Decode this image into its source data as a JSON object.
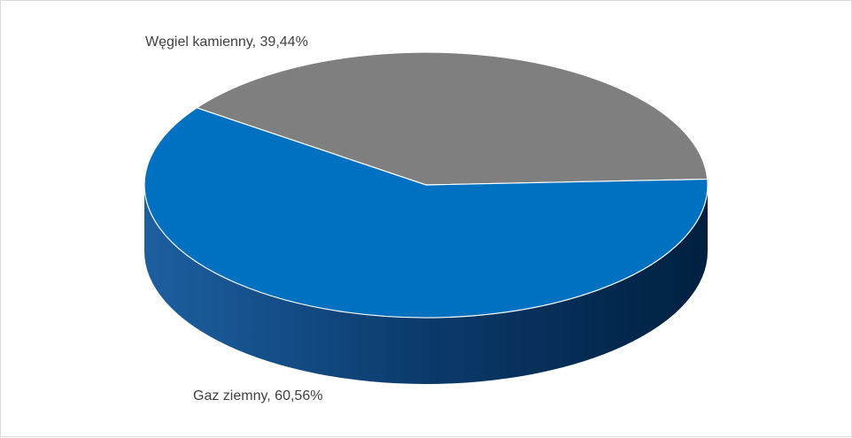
{
  "chart_data": {
    "type": "pie",
    "style": "3d",
    "title": "",
    "slices": [
      {
        "name": "Węgiel kamienny",
        "value": 39.44,
        "label": "Węgiel kamienny, 39,44%",
        "color": "#7f7f7f",
        "side_color": "#5f5f5f"
      },
      {
        "name": "Gaz ziemny",
        "value": 60.56,
        "label": "Gaz ziemny, 60,56%",
        "color": "#0070c0",
        "side_color": "#00305a"
      }
    ],
    "legend": "none",
    "data_labels": "outside"
  }
}
